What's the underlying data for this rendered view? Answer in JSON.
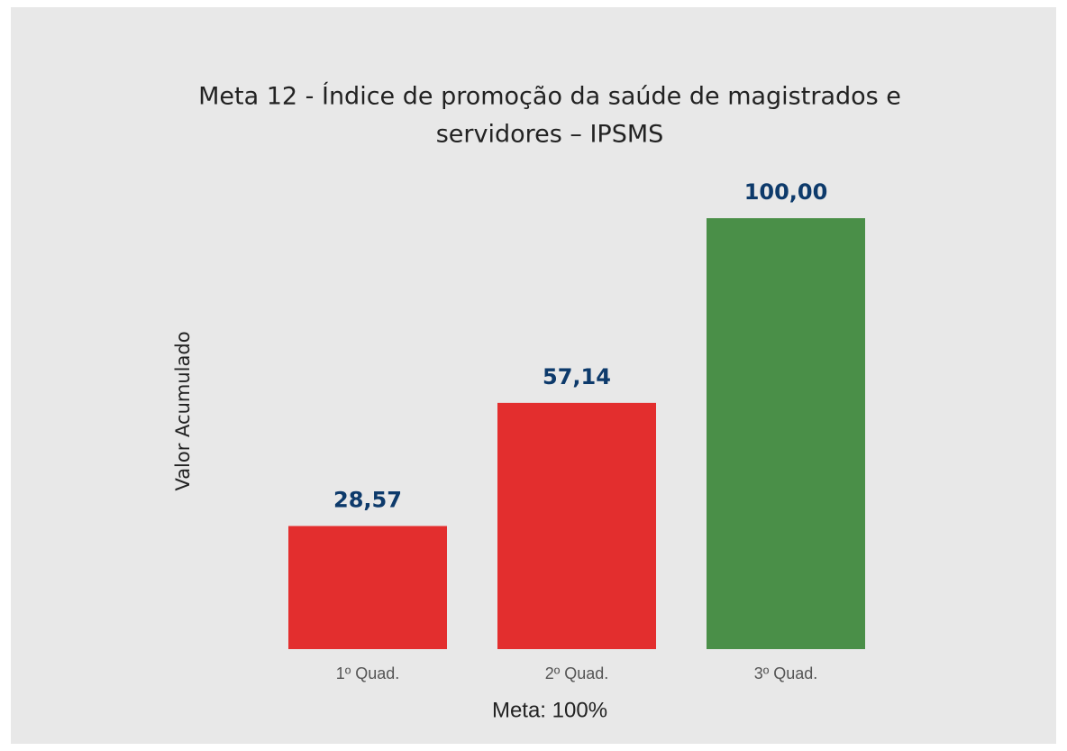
{
  "chart_data": {
    "type": "bar",
    "title": [
      "Meta 12 - Índice de promoção da saúde de magistrados e",
      "servidores – IPSMS"
    ],
    "y_label": "Valor Acumulado",
    "x_label": "Meta: 100%",
    "categories": [
      "1º Quad.",
      "2º Quad.",
      "3º Quad."
    ],
    "values": [
      28.57,
      57.14,
      100
    ],
    "value_labels": [
      "28,57",
      "57,14",
      "100,00"
    ],
    "colors": [
      "#e32e2e",
      "#e32e2e",
      "#4a8f48"
    ],
    "ylim": [
      0,
      100
    ]
  }
}
